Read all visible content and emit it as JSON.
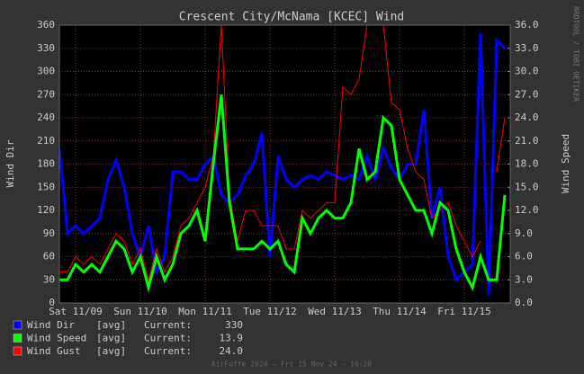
{
  "chart_data": {
    "type": "line",
    "title": "Crescent City/McNama [KCEC] Wind",
    "y_label": "Wind Dir",
    "y2_label": "Wind Speed",
    "watermark": "RRDTOOL / TOBI OETIKER",
    "footer": "AirFuffe 2024 — Fri 15 Nov 24 - 16:20",
    "xlim": [
      0,
      167
    ],
    "xticks": [
      {
        "value": 6,
        "label": "Sat 11/09"
      },
      {
        "value": 30,
        "label": "Sun 11/10"
      },
      {
        "value": 54,
        "label": "Mon 11/11"
      },
      {
        "value": 78,
        "label": "Tue 11/12"
      },
      {
        "value": 102,
        "label": "Wed 11/13"
      },
      {
        "value": 126,
        "label": "Thu 11/14"
      },
      {
        "value": 150,
        "label": "Fri 11/15"
      }
    ],
    "ylim": [
      0,
      360
    ],
    "yticks": [
      0,
      30,
      60,
      90,
      120,
      150,
      180,
      210,
      240,
      270,
      300,
      330,
      360
    ],
    "y2lim": [
      0,
      36
    ],
    "y2ticks": [
      {
        "value": 0,
        "label": "0.0"
      },
      {
        "value": 3,
        "label": "3.0"
      },
      {
        "value": 6,
        "label": "6.0"
      },
      {
        "value": 9,
        "label": "9.0"
      },
      {
        "value": 12,
        "label": "12.0"
      },
      {
        "value": 15,
        "label": "15.0"
      },
      {
        "value": 18,
        "label": "18.0"
      },
      {
        "value": 21,
        "label": "21.0"
      },
      {
        "value": 24,
        "label": "24.0"
      },
      {
        "value": 27,
        "label": "27.0"
      },
      {
        "value": 30,
        "label": "30.0"
      },
      {
        "value": 33,
        "label": "33.0"
      },
      {
        "value": 36,
        "label": "36.0"
      }
    ],
    "grid": true,
    "x": [
      0,
      3,
      6,
      9,
      12,
      15,
      18,
      21,
      24,
      27,
      30,
      33,
      36,
      39,
      42,
      45,
      48,
      51,
      54,
      57,
      60,
      63,
      66,
      69,
      72,
      75,
      78,
      81,
      84,
      87,
      90,
      93,
      96,
      99,
      102,
      105,
      108,
      111,
      114,
      117,
      120,
      123,
      126,
      129,
      132,
      135,
      138,
      141,
      144,
      147,
      150,
      153,
      156,
      159,
      162,
      165
    ],
    "series": [
      {
        "name": "Wind Dir",
        "legend_text": "[avg]   Current:",
        "current": "330",
        "color": "#0000ff",
        "axis": "y",
        "values": [
          200,
          90,
          100,
          90,
          100,
          110,
          160,
          185,
          150,
          90,
          60,
          100,
          40,
          60,
          170,
          170,
          160,
          160,
          180,
          190,
          140,
          130,
          140,
          165,
          180,
          220,
          60,
          190,
          160,
          150,
          160,
          165,
          160,
          170,
          165,
          160,
          165,
          160,
          190,
          160,
          200,
          175,
          160,
          180,
          180,
          250,
          110,
          150,
          60,
          30,
          40,
          50,
          350,
          10,
          340,
          330
        ]
      },
      {
        "name": "Wind Gust",
        "legend_text": "[avg]   Current:",
        "current": "24.0",
        "color": "#ff0000",
        "axis": "y2",
        "values": [
          4,
          4,
          6,
          5,
          6,
          5,
          7,
          9,
          8,
          5,
          7,
          3,
          7,
          4,
          6,
          10,
          11,
          13,
          15,
          19,
          36,
          14,
          8,
          12,
          12,
          10,
          10,
          10,
          7,
          7,
          12,
          11,
          12,
          13,
          13,
          28,
          27,
          29,
          36,
          36,
          36,
          26,
          25,
          20,
          17,
          16,
          11,
          12,
          13,
          10,
          8,
          6,
          8,
          null,
          17,
          24
        ]
      },
      {
        "name": "Wind Speed",
        "legend_text": "[avg]   Current:",
        "current": "13.9",
        "color": "#00ff00",
        "axis": "y2",
        "values": [
          3,
          3,
          5,
          4,
          5,
          4,
          6,
          8,
          7,
          4,
          6,
          2,
          6,
          3,
          5,
          9,
          10,
          12,
          8,
          18,
          27,
          13,
          7,
          7,
          7,
          8,
          7,
          8,
          5,
          4,
          11,
          9,
          11,
          12,
          11,
          11,
          13,
          20,
          16,
          17,
          24,
          23,
          16,
          14,
          12,
          12,
          9,
          13,
          12,
          7,
          4,
          2,
          6,
          3,
          3,
          14
        ]
      }
    ],
    "legend_order": [
      0,
      2,
      1
    ]
  }
}
